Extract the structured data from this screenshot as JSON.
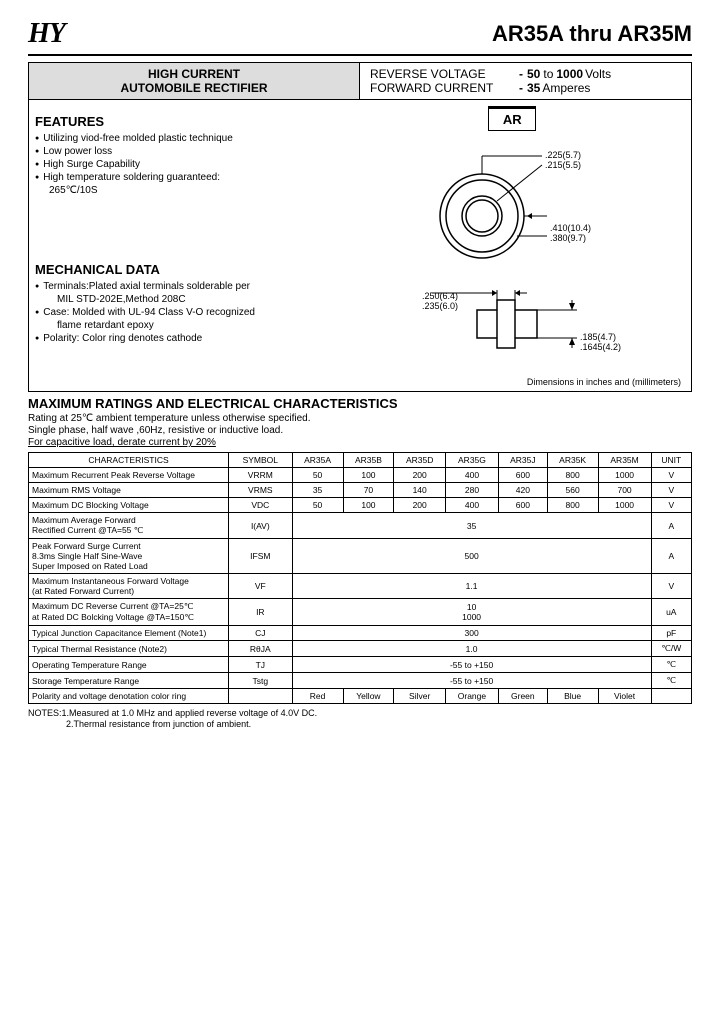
{
  "header": {
    "logo": "HY",
    "title": "AR35A thru AR35M"
  },
  "topbox": {
    "left1": "HIGH CURRENT",
    "left2": "AUTOMOBILE RECTIFIER",
    "rv_label": "REVERSE VOLTAGE",
    "rv_val": "50",
    "rv_to": "to",
    "rv_val2": "1000",
    "rv_unit": "Volts",
    "fc_label": "FORWARD CURRENT",
    "fc_val": "35",
    "fc_unit": "Amperes"
  },
  "features": {
    "head": "FEATURES",
    "items": [
      "Utilizing viod-free molded plastic technique",
      "Low power loss",
      "High Surge Capability",
      "High temperature soldering guaranteed:"
    ],
    "indent": "265℃/10S"
  },
  "mech": {
    "head": "MECHANICAL DATA",
    "b1": "Terminals:Plated axial terminals solderable per",
    "b1b": "MIL STD-202E,Method 208C",
    "b2": "Case: Molded with UL-94 Class V-O recognized",
    "b2b": "flame retardant epoxy",
    "b3": "Polarity: Color ring denotes cathode"
  },
  "ar": "AR",
  "circle": {
    "d1": ".225(5.7)",
    "d2": ".215(5.5)",
    "d3": ".410(10.4)",
    "d4": ".380(9.7)"
  },
  "side": {
    "d1": ".250(6.4)",
    "d2": ".235(6.0)",
    "d3": ".185(4.7)",
    "d4": ".1645(4.2)"
  },
  "dim_note": "Dimensions in inches and (millimeters)",
  "char": {
    "head": "MAXIMUM RATINGS AND ELECTRICAL CHARACTERISTICS",
    "n1": "Rating at 25℃ ambient temperature unless otherwise specified.",
    "n2": "Single phase, half wave ,60Hz, resistive or inductive load.",
    "n3": "For capacitive load, derate current by 20%"
  },
  "table": {
    "headers": [
      "CHARACTERISTICS",
      "SYMBOL",
      "AR35A",
      "AR35B",
      "AR35D",
      "AR35G",
      "AR35J",
      "AR35K",
      "AR35M",
      "UNIT"
    ],
    "rows": [
      {
        "ch": "Maximum Recurrent Peak Reverse Voltage",
        "sym": "VRRM",
        "v": [
          "50",
          "100",
          "200",
          "400",
          "600",
          "800",
          "1000"
        ],
        "u": "V"
      },
      {
        "ch": "Maximum RMS Voltage",
        "sym": "VRMS",
        "v": [
          "35",
          "70",
          "140",
          "280",
          "420",
          "560",
          "700"
        ],
        "u": "V"
      },
      {
        "ch": "Maximum DC Blocking Voltage",
        "sym": "VDC",
        "v": [
          "50",
          "100",
          "200",
          "400",
          "600",
          "800",
          "1000"
        ],
        "u": "V"
      },
      {
        "ch": "Maximum Average Forward\nRectified Current               @TA=55 ℃",
        "sym": "I(AV)",
        "span": "35",
        "u": "A"
      },
      {
        "ch": "Peak Forward Surge Current\n8.3ms Single Half Sine-Wave\nSuper Imposed on Rated Load",
        "sym": "IFSM",
        "span": "500",
        "u": "A"
      },
      {
        "ch": "Maximum Instantaneous Forward Voltage\n(at Rated Forward Current)",
        "sym": "VF",
        "span": "1.1",
        "u": "V"
      },
      {
        "ch": "Maximum DC Reverse Current  @TA=25℃\nat Rated DC Bolcking Voltage  @TA=150℃",
        "sym": "IR",
        "span2": [
          "10",
          "1000"
        ],
        "u": "uA"
      },
      {
        "ch": "Typical Junction  Capacitance Element (Note1)",
        "sym": "CJ",
        "span": "300",
        "u": "pF"
      },
      {
        "ch": "Typical Thermal Resistance (Note2)",
        "sym": "RθJA",
        "span": "1.0",
        "u": "℃/W"
      },
      {
        "ch": "Operating Temperature Range",
        "sym": "TJ",
        "span": "-55 to +150",
        "u": "℃"
      },
      {
        "ch": "Storage Temperature Range",
        "sym": "Tstg",
        "span": "-55 to +150",
        "u": "℃"
      },
      {
        "ch": "Polarity and voltage denotation color ring",
        "sym": "",
        "v": [
          "Red",
          "Yellow",
          "Silver",
          "Orange",
          "Green",
          "Blue",
          "Violet"
        ],
        "u": ""
      }
    ]
  },
  "notes": {
    "n1": "NOTES:1.Measured at 1.0 MHz and applied reverse voltage of 4.0V DC.",
    "n2": "2.Thermal resistance from junction of ambient."
  }
}
